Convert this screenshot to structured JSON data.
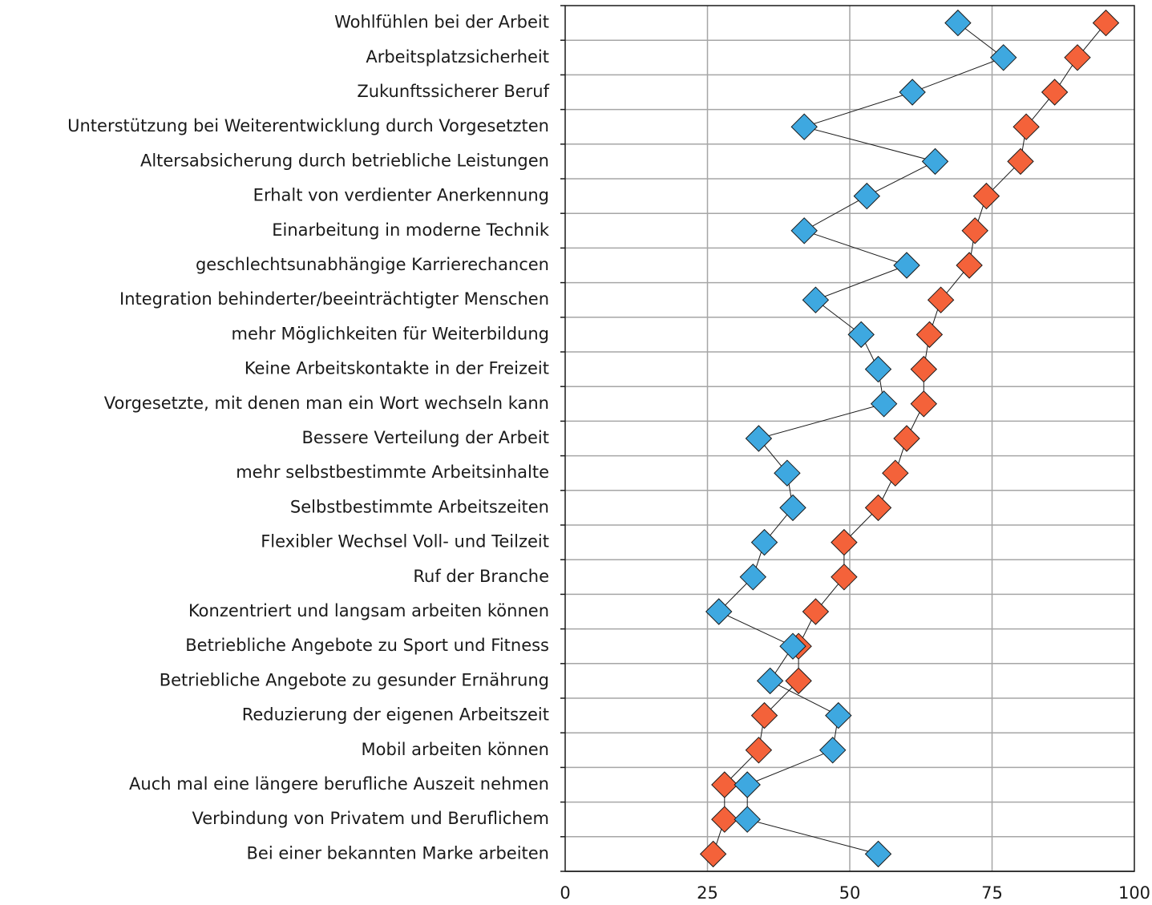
{
  "chart_data": {
    "type": "scatter",
    "orientation": "horizontal",
    "categories": [
      "Wohlfühlen bei der Arbeit",
      "Arbeitsplatzsicherheit",
      "Zukunftssicherer Beruf",
      "Unterstützung bei Weiterentwicklung durch Vorgesetzten",
      "Altersabsicherung durch betriebliche Leistungen",
      "Erhalt von verdienter Anerkennung",
      "Einarbeitung in moderne Technik",
      "geschlechtsunabhängige Karrierechancen",
      "Integration behinderter/beeinträchtigter Menschen",
      "mehr Möglichkeiten für Weiterbildung",
      "Keine Arbeitskontakte in der Freizeit",
      "Vorgesetzte, mit denen man ein Wort wechseln kann",
      "Bessere Verteilung der Arbeit",
      "mehr selbstbestimmte Arbeitsinhalte",
      "Selbstbestimmte Arbeitszeiten",
      "Flexibler Wechsel Voll- und Teilzeit",
      "Ruf der Branche",
      "Konzentriert und langsam arbeiten können",
      "Betriebliche Angebote zu Sport und Fitness",
      "Betriebliche Angebote zu gesunder Ernährung",
      "Reduzierung der eigenen Arbeitszeit",
      "Mobil arbeiten können",
      "Auch mal eine längere berufliche Auszeit nehmen",
      "Verbindung von Privatem und Beruflichem",
      "Bei einer bekannten Marke arbeiten"
    ],
    "series": [
      {
        "color": "#f4623a",
        "values": [
          95,
          90,
          86,
          81,
          80,
          74,
          72,
          71,
          66,
          64,
          63,
          63,
          60,
          58,
          55,
          49,
          49,
          44,
          41,
          41,
          35,
          34,
          28,
          28,
          26
        ]
      },
      {
        "color": "#3ea8e0",
        "values": [
          69,
          77,
          61,
          42,
          65,
          53,
          42,
          60,
          44,
          52,
          55,
          56,
          34,
          39,
          40,
          35,
          33,
          27,
          40,
          36,
          48,
          47,
          32,
          32,
          55
        ]
      }
    ],
    "xlim": [
      0,
      100
    ],
    "xticks": [
      0,
      25,
      50,
      75,
      100
    ],
    "grid": true,
    "title": "",
    "xlabel": "",
    "ylabel": ""
  }
}
